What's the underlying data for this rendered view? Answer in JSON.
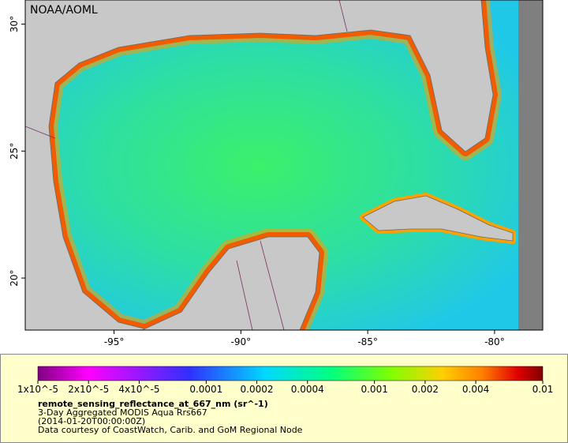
{
  "map": {
    "watermark": "NOAA/AOML",
    "xlim": [
      -98.5,
      -78.1
    ],
    "ylim": [
      17.95,
      30.95
    ],
    "xticks": [
      {
        "value": -95,
        "label": "-95°"
      },
      {
        "value": -90,
        "label": "-90°"
      },
      {
        "value": -85,
        "label": "-85°"
      },
      {
        "value": -80,
        "label": "-80°"
      }
    ],
    "yticks": [
      {
        "value": 30,
        "label": "30°"
      },
      {
        "value": 25,
        "label": "25°"
      },
      {
        "value": 20,
        "label": "20°"
      }
    ]
  },
  "colorbar": {
    "scale": "log",
    "range": [
      1e-05,
      0.01
    ],
    "ticks": [
      {
        "value": 1e-05,
        "label": "1x10^-5"
      },
      {
        "value": 2e-05,
        "label": "2x10^-5"
      },
      {
        "value": 4e-05,
        "label": "4x10^-5"
      },
      {
        "value": 0.0001,
        "label": "0.0001"
      },
      {
        "value": 0.0002,
        "label": "0.0002"
      },
      {
        "value": 0.0004,
        "label": "0.0004"
      },
      {
        "value": 0.001,
        "label": "0.001"
      },
      {
        "value": 0.002,
        "label": "0.002"
      },
      {
        "value": 0.004,
        "label": "0.004"
      },
      {
        "value": 0.01,
        "label": "0.01"
      }
    ]
  },
  "caption": {
    "variable": "remote_sensing_reflectance_at_667_nm (sr^-1)",
    "description": "3-Day Aggregated MODIS Aqua Rrs667",
    "time": "(2014-01-20T00:00:00Z)",
    "credit": "Data courtesy of CoastWatch, Carib. and GoM Regional Node"
  }
}
